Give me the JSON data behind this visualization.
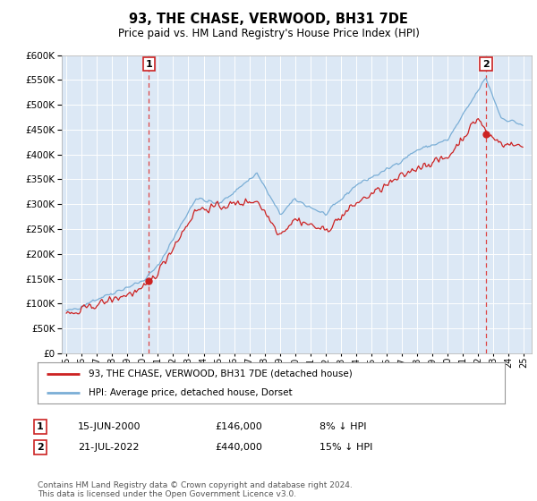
{
  "title": "93, THE CHASE, VERWOOD, BH31 7DE",
  "subtitle": "Price paid vs. HM Land Registry's House Price Index (HPI)",
  "plot_bg_color": "#dce8f5",
  "ylim": [
    0,
    600000
  ],
  "yticks": [
    0,
    50000,
    100000,
    150000,
    200000,
    250000,
    300000,
    350000,
    400000,
    450000,
    500000,
    550000,
    600000
  ],
  "hpi_color": "#7aaed6",
  "price_color": "#cc2222",
  "marker_color": "#cc2222",
  "dashed_line_color": "#dd4444",
  "sale1_year_idx": 61,
  "sale1_price": 146000,
  "sale2_year_idx": 327,
  "sale2_price": 440000,
  "legend_label1": "93, THE CHASE, VERWOOD, BH31 7DE (detached house)",
  "legend_label2": "HPI: Average price, detached house, Dorset",
  "annotation1_label": "1",
  "annotation1_date": "15-JUN-2000",
  "annotation1_price": "£146,000",
  "annotation1_hpi": "8% ↓ HPI",
  "annotation2_label": "2",
  "annotation2_date": "21-JUL-2022",
  "annotation2_price": "£440,000",
  "annotation2_hpi": "15% ↓ HPI",
  "footer": "Contains HM Land Registry data © Crown copyright and database right 2024.\nThis data is licensed under the Open Government Licence v3.0."
}
